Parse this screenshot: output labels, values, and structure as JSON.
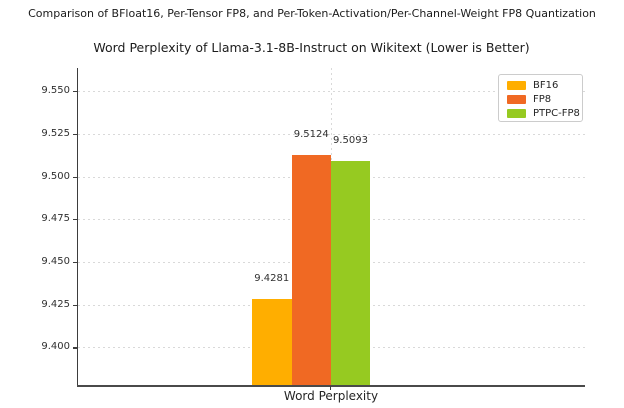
{
  "suptitle": "Comparison of BFloat16, Per-Tensor FP8, and Per-Token-Activation/Per-Channel-Weight FP8 Quantization",
  "chart_data": {
    "type": "bar",
    "title": "Word Perplexity of Llama-3.1-8B-Instruct on Wikitext (Lower is Better)",
    "categories": [
      "Word Perplexity"
    ],
    "series": [
      {
        "name": "BF16",
        "values": [
          9.4281
        ],
        "label": "9.4281",
        "color": "#FFAE00"
      },
      {
        "name": "FP8",
        "values": [
          9.5124
        ],
        "label": "9.5124",
        "color": "#F06923"
      },
      {
        "name": "PTPC-FP8",
        "values": [
          9.5093
        ],
        "label": "9.5093",
        "color": "#96CA21"
      }
    ],
    "xlabel": "",
    "ylabel": "",
    "ylim": [
      9.378,
      9.5635
    ],
    "yticks": [
      "9.400",
      "9.425",
      "9.450",
      "9.475",
      "9.500",
      "9.525",
      "9.550"
    ],
    "grid": true,
    "legend": {
      "position": "upper right",
      "entries": [
        "BF16",
        "FP8",
        "PTPC-FP8"
      ]
    }
  }
}
